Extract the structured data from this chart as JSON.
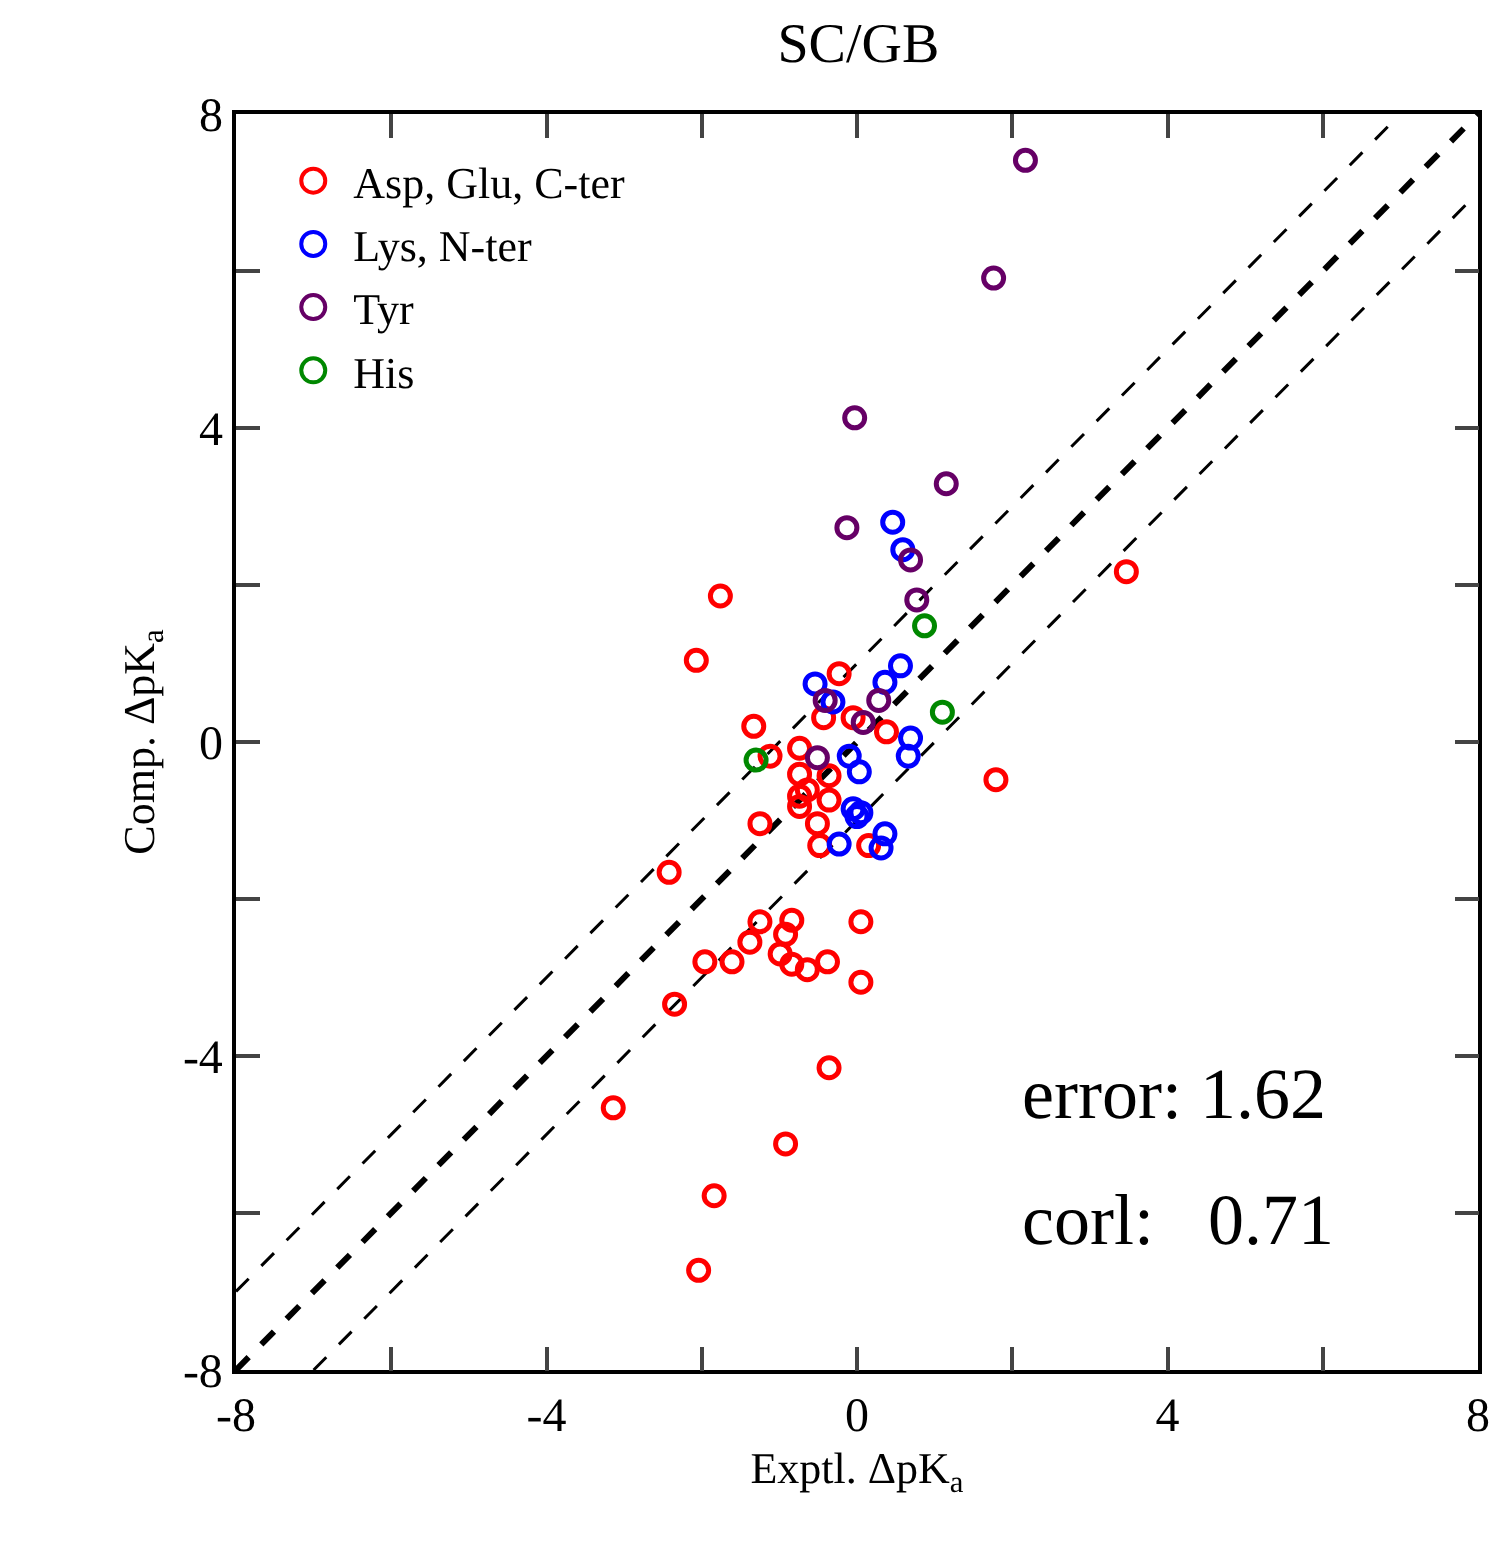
{
  "chart_data": {
    "type": "scatter",
    "title": "SC/GB",
    "xlabel": "Exptl. ΔpK$_{a}$",
    "ylabel": "Comp. ΔpK$_{a}$",
    "xlim": [
      -8,
      8
    ],
    "ylim": [
      -8,
      8
    ],
    "xticks": [
      -8,
      {
        "value": -6,
        "label": null
      },
      -4,
      {
        "value": -2,
        "label": null
      },
      0,
      {
        "value": 2,
        "label": null
      },
      4,
      {
        "value": 6,
        "label": null
      },
      8
    ],
    "yticks": [
      -8,
      {
        "value": -6,
        "label": null
      },
      -4,
      {
        "value": -2,
        "label": null
      },
      0,
      {
        "value": 2,
        "label": null
      },
      4,
      {
        "value": 6,
        "label": null
      },
      8
    ],
    "grid": false,
    "legend": "top left",
    "annotations": [
      "error: 1.62",
      "corl:   0.71"
    ],
    "series": [
      {
        "type": "line",
        "marker": "none",
        "color": "#000000",
        "line_style": "dashed",
        "x": [
          -8,
          7
        ],
        "values": [
          -7,
          8
        ]
      },
      {
        "type": "line",
        "marker": "none",
        "color": "#000000",
        "line_style": "dashed",
        "x": [
          -8,
          8
        ],
        "values": [
          -8,
          8
        ]
      },
      {
        "type": "line",
        "marker": "none",
        "color": "#000000",
        "line_style": "dashed",
        "x": [
          -7,
          8
        ],
        "values": [
          -8,
          7
        ]
      },
      {
        "name": "Asp, Glu, C-ter",
        "marker": "circle",
        "color": "#ff0000",
        "x": [
          -1.76,
          -2.07,
          3.47,
          1.79,
          -0.23,
          -1.33,
          -1.12,
          -0.74,
          -0.43,
          -0.05,
          0.38,
          -0.74,
          -0.74,
          -0.74,
          -0.36,
          -0.36,
          -0.51,
          -0.48,
          -1.25,
          0.15,
          -2.42,
          -0.64,
          -1.25,
          -0.84,
          0.05,
          -1.38,
          -0.92,
          -0.99,
          -1.96,
          -1.61,
          -0.84,
          -0.64,
          -0.38,
          0.05,
          -2.35,
          -0.36,
          -3.14,
          -0.92,
          -1.84,
          -2.04
        ],
        "values": [
          1.86,
          1.04,
          2.17,
          -0.48,
          0.87,
          0.2,
          -0.18,
          -0.08,
          0.31,
          0.31,
          0.13,
          -0.41,
          -0.69,
          -0.82,
          -0.43,
          -0.74,
          -1.04,
          -1.32,
          -1.04,
          -1.32,
          -1.66,
          -0.61,
          -2.29,
          -2.27,
          -2.29,
          -2.55,
          -2.45,
          -2.7,
          -2.8,
          -2.8,
          -2.83,
          -2.9,
          -2.8,
          -3.06,
          -3.34,
          -4.15,
          -4.66,
          -5.12,
          -5.78,
          -6.73
        ]
      },
      {
        "name": "Lys, N-ter",
        "marker": "circle",
        "color": "#0000ff",
        "x": [
          0.46,
          0.59,
          0.56,
          0.36,
          -0.54,
          -0.31,
          0.69,
          0.66,
          -0.1,
          0.03,
          -0.05,
          0.05,
          0.0,
          -0.23,
          0.36,
          0.31
        ],
        "values": [
          2.8,
          2.45,
          0.97,
          0.76,
          0.74,
          0.51,
          0.05,
          -0.18,
          -0.18,
          -0.38,
          -0.85,
          -0.9,
          -0.95,
          -1.3,
          -1.17,
          -1.35
        ]
      },
      {
        "name": "Tyr",
        "marker": "circle",
        "color": "#660066",
        "x": [
          2.17,
          1.76,
          -0.03,
          1.15,
          -0.13,
          0.69,
          0.77,
          -0.41,
          0.28,
          0.08,
          -0.51
        ],
        "values": [
          7.41,
          5.91,
          4.13,
          3.29,
          2.73,
          2.32,
          1.81,
          0.53,
          0.53,
          0.25,
          -0.2
        ]
      },
      {
        "name": "His",
        "marker": "circle",
        "color": "#008800",
        "x": [
          0.87,
          1.1,
          -1.3
        ],
        "values": [
          1.48,
          0.38,
          -0.23
        ]
      }
    ]
  }
}
